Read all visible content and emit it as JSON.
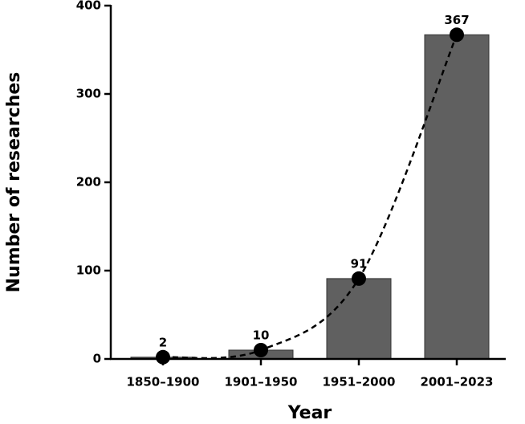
{
  "chart_data": {
    "type": "bar",
    "x_label": "Year",
    "y_label": "Number of researches",
    "categories": [
      "1850–1900",
      "1901–1950",
      "1951–2000",
      "2001–2023"
    ],
    "values": [
      2,
      10,
      91,
      367
    ],
    "color": "#606060",
    "trend_line": {
      "style": "dashed",
      "markers": true,
      "color": "#000000"
    },
    "ylim": [
      0,
      400
    ],
    "yticks": [
      0,
      100,
      200,
      300,
      400
    ],
    "grid": false,
    "data_labels": true
  }
}
